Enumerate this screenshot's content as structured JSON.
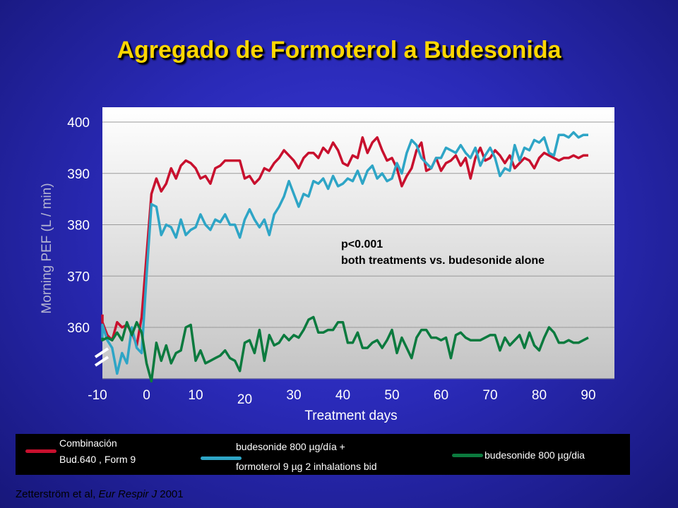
{
  "title": "Agregado de Formoterol a Budesonida",
  "annotation": {
    "line1": "p<0.001",
    "line2": "both treatments vs. budesonide alone"
  },
  "legend": {
    "red_line1": "Combinación",
    "red_line2": "Bud.640 , Form 9",
    "cyan_line1": "budesonide 800 µg/día +",
    "cyan_line2": "formoterol 9 µg 2 inhalations bid",
    "green_line1": "budesonide 800 µg/dia"
  },
  "citation": {
    "authors": "Zetterström et al,",
    "journal": "Eur Respir J",
    "year": "2001"
  },
  "colors": {
    "red": "#c8102e",
    "cyan": "#2ea5c6",
    "green": "#0b7a3e",
    "title": "#ffd700"
  },
  "chart_data": {
    "type": "line",
    "title": "",
    "xlabel": "Treatment days",
    "ylabel": "Morning PEF (L / min)",
    "xlim": [
      -10,
      90
    ],
    "ylim": [
      350,
      402
    ],
    "xticks": [
      "-10",
      "0",
      "10",
      "20",
      "30",
      "40",
      "50",
      "60",
      "70",
      "80",
      "90"
    ],
    "yticks": [
      "360",
      "370",
      "380",
      "390",
      "400"
    ],
    "legend_position": "bottom",
    "series": [
      {
        "name": "Combinación Bud.640 , Form 9",
        "color": "#c8102e",
        "x": [
          -10,
          -9,
          -8,
          -7,
          -6,
          -5,
          -4,
          -3,
          -2,
          -1,
          0,
          1,
          2,
          3,
          4,
          5,
          6,
          7,
          8,
          9,
          10,
          11,
          12,
          13,
          14,
          15,
          16,
          17,
          18,
          19,
          20,
          21,
          22,
          23,
          24,
          25,
          26,
          27,
          28,
          29,
          30,
          31,
          32,
          33,
          34,
          35,
          36,
          37,
          38,
          39,
          40,
          41,
          42,
          43,
          44,
          45,
          46,
          47,
          48,
          49,
          50,
          51,
          52,
          53,
          54,
          55,
          56,
          57,
          58,
          59,
          60,
          61,
          62,
          63,
          64,
          65,
          66,
          67,
          68,
          69,
          70,
          71,
          72,
          73,
          74,
          75,
          76,
          77,
          78,
          79,
          80,
          81,
          82,
          83,
          84,
          85,
          86,
          87,
          88,
          89,
          90
        ],
        "values": [
          362.5,
          361,
          358.5,
          357.5,
          361,
          360,
          360.5,
          359,
          356.5,
          362,
          374,
          386,
          389,
          386.5,
          388,
          391,
          389,
          391.5,
          392.5,
          392,
          391,
          389,
          389.5,
          388,
          391,
          391.5,
          392.5,
          392.5,
          392.5,
          392.5,
          389,
          389.5,
          388,
          389,
          391,
          390.5,
          392,
          393,
          394.5,
          393.5,
          392.5,
          391,
          393,
          394,
          394,
          393,
          395,
          394,
          396,
          394.5,
          392,
          391.5,
          393.5,
          393,
          397,
          394,
          396,
          397,
          394.5,
          392.5,
          393,
          391,
          387.5,
          389.5,
          391,
          394.5,
          396,
          390.5,
          391,
          393,
          390.5,
          392,
          392.5,
          393.5,
          391.5,
          393,
          389,
          393,
          395,
          392.5,
          393,
          394.5,
          393.5,
          392,
          393.5,
          391,
          392,
          393,
          392.5,
          391,
          393,
          394,
          393.5,
          393,
          392.5,
          393,
          393,
          393.5,
          393,
          393.5,
          393.5
        ]
      },
      {
        "name": "budesonide 800 µg/día + formoterol 9 µg 2 inhalations bid",
        "color": "#2ea5c6",
        "x": [
          -10,
          -9,
          -8,
          -7,
          -6,
          -5,
          -4,
          -3,
          -2,
          -1,
          0,
          1,
          2,
          3,
          4,
          5,
          6,
          7,
          8,
          9,
          10,
          11,
          12,
          13,
          14,
          15,
          16,
          17,
          18,
          19,
          20,
          21,
          22,
          23,
          24,
          25,
          26,
          27,
          28,
          29,
          30,
          31,
          32,
          33,
          34,
          35,
          36,
          37,
          38,
          39,
          40,
          41,
          42,
          43,
          44,
          45,
          46,
          47,
          48,
          49,
          50,
          51,
          52,
          53,
          54,
          55,
          56,
          57,
          58,
          59,
          60,
          61,
          62,
          63,
          64,
          65,
          66,
          67,
          68,
          69,
          70,
          71,
          72,
          73,
          74,
          75,
          76,
          77,
          78,
          79,
          80,
          81,
          82,
          83,
          84,
          85,
          86,
          87,
          88,
          89,
          90
        ],
        "values": [
          357.5,
          360.5,
          357.5,
          356,
          351,
          355,
          353,
          360,
          356,
          355,
          370,
          384,
          383.5,
          378,
          380,
          379.5,
          377.5,
          381,
          378,
          379,
          379.5,
          382,
          380,
          379,
          381,
          380.5,
          382,
          380,
          380,
          377.5,
          381,
          383,
          381,
          379.5,
          381,
          378,
          382,
          383.5,
          385.5,
          388.5,
          386,
          383.5,
          386,
          385.5,
          388.5,
          388,
          389,
          387,
          389.5,
          387.5,
          388,
          389,
          388.5,
          390.5,
          388,
          390.5,
          391.5,
          389,
          390,
          388.5,
          389,
          392,
          390,
          394,
          396.5,
          395.5,
          393,
          392,
          391,
          393,
          393,
          395,
          394.5,
          394,
          395.5,
          394,
          393,
          395,
          391.5,
          393.5,
          395,
          393,
          389.5,
          391,
          390.5,
          395.5,
          392.5,
          395,
          394.5,
          396.5,
          396,
          397,
          394,
          393.5,
          397.5,
          397.5,
          397,
          398,
          397,
          397.5,
          397.5
        ]
      },
      {
        "name": "budesonide 800 µg/dia",
        "color": "#0b7a3e",
        "x": [
          -10,
          -9,
          -8,
          -7,
          -6,
          -5,
          -4,
          -3,
          -2,
          -1,
          0,
          1,
          2,
          3,
          4,
          5,
          6,
          7,
          8,
          9,
          10,
          11,
          12,
          13,
          14,
          15,
          16,
          17,
          18,
          19,
          20,
          21,
          22,
          23,
          24,
          25,
          26,
          27,
          28,
          29,
          30,
          31,
          32,
          33,
          34,
          35,
          36,
          37,
          38,
          39,
          40,
          41,
          42,
          43,
          44,
          45,
          46,
          47,
          48,
          49,
          50,
          51,
          52,
          53,
          54,
          55,
          56,
          57,
          58,
          59,
          60,
          61,
          62,
          63,
          64,
          65,
          66,
          67,
          68,
          69,
          70,
          71,
          72,
          73,
          74,
          75,
          76,
          77,
          78,
          79,
          80,
          81,
          82,
          83,
          84,
          85,
          86,
          87,
          88,
          89,
          90
        ],
        "values": [
          358,
          357.5,
          358,
          357.5,
          359,
          357.5,
          361,
          358.5,
          361,
          359,
          353,
          349.5,
          357,
          353.5,
          356.5,
          353,
          355,
          355.5,
          360,
          360.5,
          353.5,
          355.5,
          353,
          353.5,
          354,
          354.5,
          355.5,
          354,
          353.5,
          351.5,
          357,
          357.5,
          355,
          359.5,
          353.5,
          358.5,
          356.5,
          357,
          358.5,
          357.5,
          358.5,
          358,
          359.5,
          361.5,
          362,
          359,
          359,
          359.5,
          359.5,
          361,
          361,
          357,
          357,
          359,
          356,
          356,
          357,
          357.5,
          356,
          357.5,
          359.5,
          355,
          358,
          356,
          354,
          358,
          359.5,
          359.5,
          358,
          358,
          357.5,
          358,
          354,
          358.5,
          359,
          358,
          357.5,
          357.5,
          357.5,
          358,
          358.5,
          358.5,
          355.5,
          358,
          356.5,
          357.5,
          358.5,
          356,
          359,
          356.5,
          355.5,
          358,
          360,
          359,
          357,
          357,
          357.5,
          357,
          357,
          357.5,
          358
        ]
      }
    ]
  }
}
